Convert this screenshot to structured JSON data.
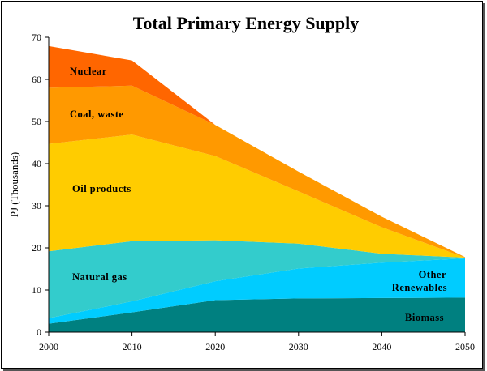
{
  "chart_data": {
    "type": "area",
    "stacked": true,
    "title": "Total Primary Energy Supply",
    "ylabel": "PJ (Thousands)",
    "xlabel": "",
    "x": [
      2000,
      2010,
      2020,
      2030,
      2040,
      2050
    ],
    "xticks": [
      "2000",
      "2010",
      "2020",
      "2030",
      "2040",
      "2050"
    ],
    "yticks": [
      "0",
      "10",
      "20",
      "30",
      "40",
      "50",
      "60",
      "70"
    ],
    "ylim": [
      0,
      70
    ],
    "grid": false,
    "series": [
      {
        "name": "Biomass",
        "color": "#008080",
        "values": [
          2.0,
          4.7,
          7.6,
          8.0,
          8.1,
          8.2
        ]
      },
      {
        "name": "Other Renewables",
        "color": "#00CCFF",
        "values": [
          1.3,
          2.6,
          4.5,
          7.1,
          8.4,
          9.3
        ]
      },
      {
        "name": "Natural gas",
        "color": "#33CCCC",
        "values": [
          15.9,
          14.3,
          9.7,
          5.9,
          2.1,
          0.2
        ]
      },
      {
        "name": "Oil products",
        "color": "#FFCC00",
        "values": [
          25.5,
          25.3,
          20.0,
          12.4,
          6.3,
          0.0
        ]
      },
      {
        "name": "Coal, waste",
        "color": "#FF9900",
        "values": [
          13.3,
          11.6,
          7.4,
          4.7,
          2.5,
          0.1
        ]
      },
      {
        "name": "Nuclear",
        "color": "#FF6600",
        "values": [
          9.9,
          6.0,
          0.0,
          0.0,
          0.0,
          0.0
        ]
      }
    ],
    "labels": {
      "nuclear": "Nuclear",
      "coal": "Coal, waste",
      "oil": "Oil products",
      "gas": "Natural gas",
      "other_line1": "Other",
      "other_line2": "Renewables",
      "biomass": "Biomass"
    }
  }
}
